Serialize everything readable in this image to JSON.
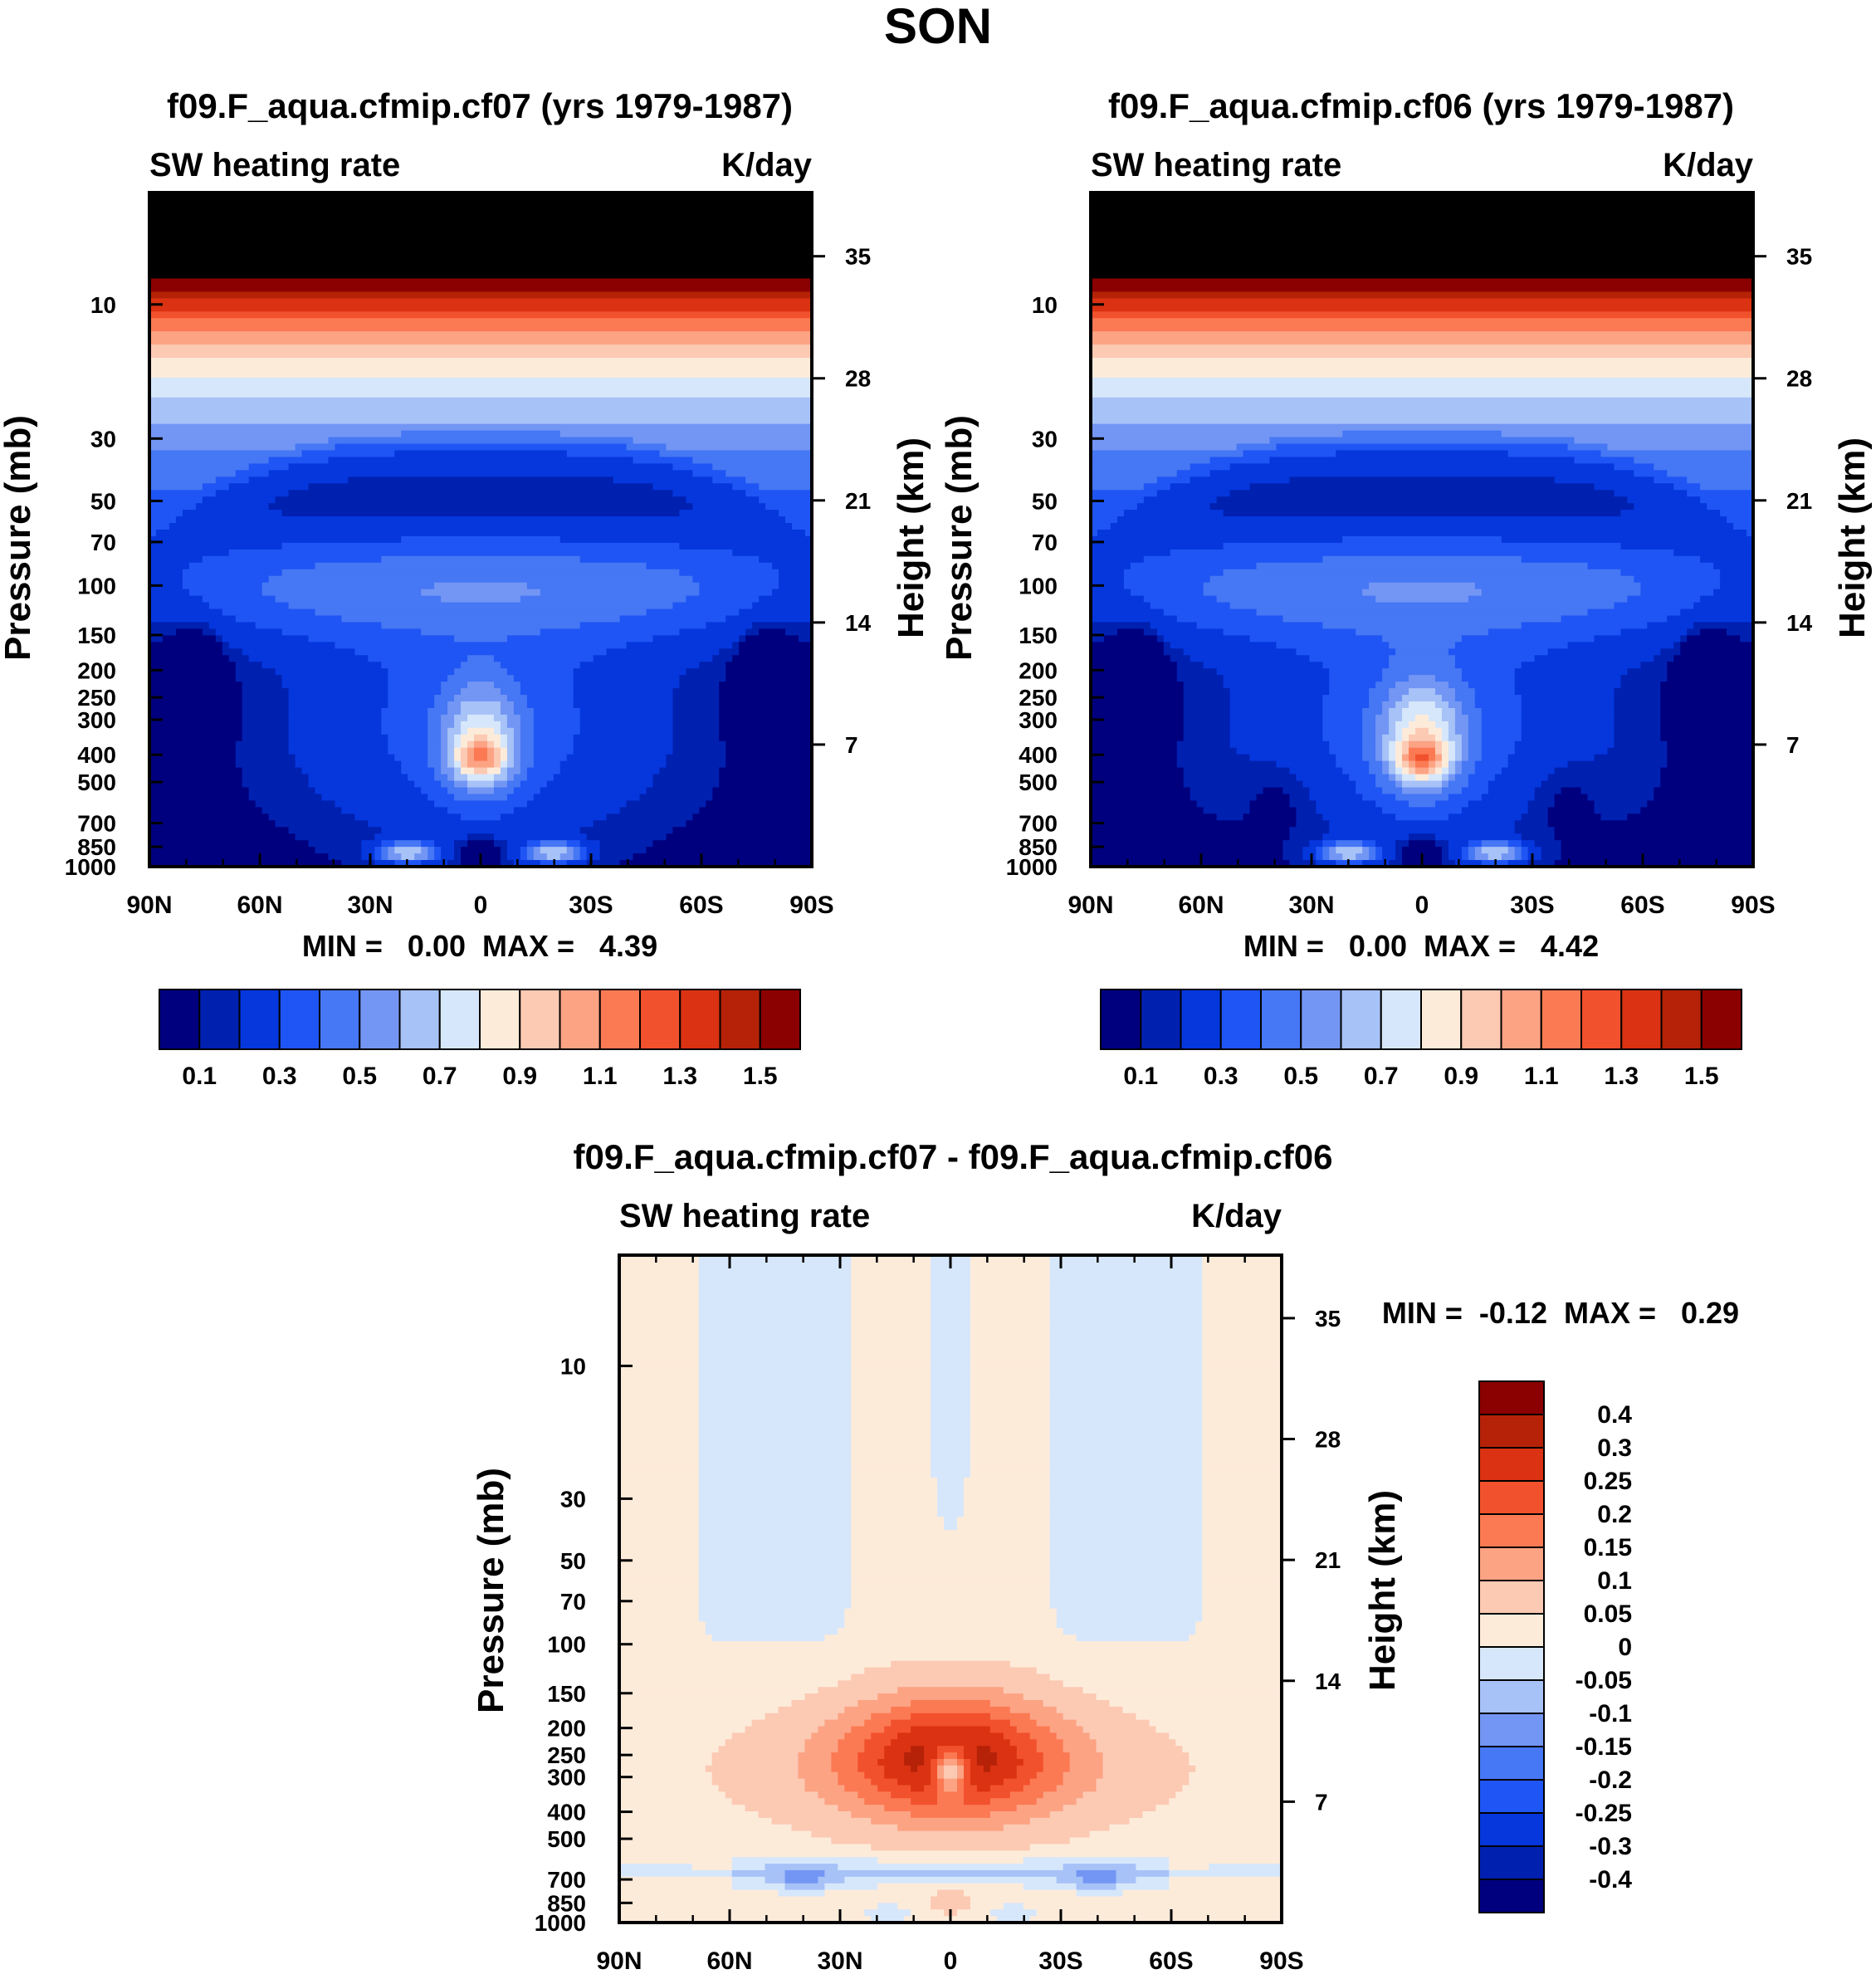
{
  "figure_title": "SON",
  "colors": {
    "abs_levels": [
      "#00007f",
      "#0020b0",
      "#0537dd",
      "#1f55f4",
      "#4677f4",
      "#7396f4",
      "#a7c2f7",
      "#d6e7fb",
      "#fdebda",
      "#fcc9b3",
      "#fca384",
      "#fb7a53",
      "#f2512d",
      "#da3212",
      "#b52208",
      "#8b0000"
    ],
    "diff_levels": [
      "#00007f",
      "#0020b0",
      "#0537dd",
      "#1f55f4",
      "#4677f4",
      "#7396f4",
      "#a7c2f7",
      "#d6e7fb",
      "#fdebda",
      "#fcc9b3",
      "#fca384",
      "#fb7a53",
      "#f2512d",
      "#da3212",
      "#b52208",
      "#8b0000"
    ]
  },
  "chart_data": [
    {
      "type": "heatmap",
      "title": "f09.F_aqua.cfmip.cf07 (yrs 1979-1987)",
      "left_label": "SW heating rate",
      "right_label": "K/day",
      "ylabel": "Pressure (mb)",
      "ylabel_right": "Height (km)",
      "x_ticks": [
        "90N",
        "60N",
        "30N",
        "0",
        "30S",
        "60S",
        "90S"
      ],
      "x_values": [
        90,
        60,
        30,
        0,
        -30,
        -60,
        -90
      ],
      "y_ticks": [
        "10",
        "30",
        "50",
        "70",
        "100",
        "150",
        "200",
        "250",
        "300",
        "400",
        "500",
        "700",
        "850",
        "1000"
      ],
      "y_values": [
        10,
        30,
        50,
        70,
        100,
        150,
        200,
        250,
        300,
        400,
        500,
        700,
        850,
        1000
      ],
      "height_ticks": [
        "35",
        "28",
        "21",
        "14",
        "7"
      ],
      "height_values": [
        35,
        28,
        21,
        14,
        7
      ],
      "ylim": [
        4,
        1000
      ],
      "stats_text": "MIN =   0.00  MAX =   4.39",
      "min": 0.0,
      "max": 4.39,
      "colorbar_labels": [
        "0.1",
        "0.3",
        "0.5",
        "0.7",
        "0.9",
        "1.1",
        "1.3",
        "1.5"
      ],
      "contour_levels": [
        0.05,
        0.1,
        0.2,
        0.3,
        0.4,
        0.5,
        0.6,
        0.7,
        0.8,
        0.9,
        1.0,
        1.1,
        1.2,
        1.3,
        1.4,
        1.5
      ]
    },
    {
      "type": "heatmap",
      "title": "f09.F_aqua.cfmip.cf06 (yrs 1979-1987)",
      "left_label": "SW heating rate",
      "right_label": "K/day",
      "ylabel": "Pressure (mb)",
      "ylabel_right": "Height (km)",
      "x_ticks": [
        "90N",
        "60N",
        "30N",
        "0",
        "30S",
        "60S",
        "90S"
      ],
      "x_values": [
        90,
        60,
        30,
        0,
        -30,
        -60,
        -90
      ],
      "y_ticks": [
        "10",
        "30",
        "50",
        "70",
        "100",
        "150",
        "200",
        "250",
        "300",
        "400",
        "500",
        "700",
        "850",
        "1000"
      ],
      "y_values": [
        10,
        30,
        50,
        70,
        100,
        150,
        200,
        250,
        300,
        400,
        500,
        700,
        850,
        1000
      ],
      "height_ticks": [
        "35",
        "28",
        "21",
        "14",
        "7"
      ],
      "height_values": [
        35,
        28,
        21,
        14,
        7
      ],
      "ylim": [
        4,
        1000
      ],
      "stats_text": "MIN =   0.00  MAX =   4.42",
      "min": 0.0,
      "max": 4.42,
      "colorbar_labels": [
        "0.1",
        "0.3",
        "0.5",
        "0.7",
        "0.9",
        "1.1",
        "1.3",
        "1.5"
      ],
      "contour_levels": [
        0.05,
        0.1,
        0.2,
        0.3,
        0.4,
        0.5,
        0.6,
        0.7,
        0.8,
        0.9,
        1.0,
        1.1,
        1.2,
        1.3,
        1.4,
        1.5
      ]
    },
    {
      "type": "heatmap",
      "title": "f09.F_aqua.cfmip.cf07 - f09.F_aqua.cfmip.cf06",
      "left_label": "SW heating rate",
      "right_label": "K/day",
      "ylabel": "Pressure (mb)",
      "ylabel_right": "Height (km)",
      "x_ticks": [
        "90N",
        "60N",
        "30N",
        "0",
        "30S",
        "60S",
        "90S"
      ],
      "x_values": [
        90,
        60,
        30,
        0,
        -30,
        -60,
        -90
      ],
      "y_ticks": [
        "10",
        "30",
        "50",
        "70",
        "100",
        "150",
        "200",
        "250",
        "300",
        "400",
        "500",
        "700",
        "850",
        "1000"
      ],
      "y_values": [
        10,
        30,
        50,
        70,
        100,
        150,
        200,
        250,
        300,
        400,
        500,
        700,
        850,
        1000
      ],
      "height_ticks": [
        "35",
        "28",
        "21",
        "14",
        "7"
      ],
      "height_values": [
        35,
        28,
        21,
        14,
        7
      ],
      "ylim": [
        4,
        1000
      ],
      "stats_text": "MIN =  -0.12  MAX =   0.29",
      "min": -0.12,
      "max": 0.29,
      "colorbar_labels": [
        "0.4",
        "0.3",
        "0.25",
        "0.2",
        "0.15",
        "0.1",
        "0.05",
        "0",
        "-0.05",
        "-0.1",
        "-0.15",
        "-0.2",
        "-0.25",
        "-0.3",
        "-0.4"
      ],
      "contour_levels": [
        -0.4,
        -0.3,
        -0.25,
        -0.2,
        -0.15,
        -0.1,
        -0.05,
        0,
        0.05,
        0.1,
        0.15,
        0.2,
        0.25,
        0.3,
        0.4
      ]
    }
  ]
}
